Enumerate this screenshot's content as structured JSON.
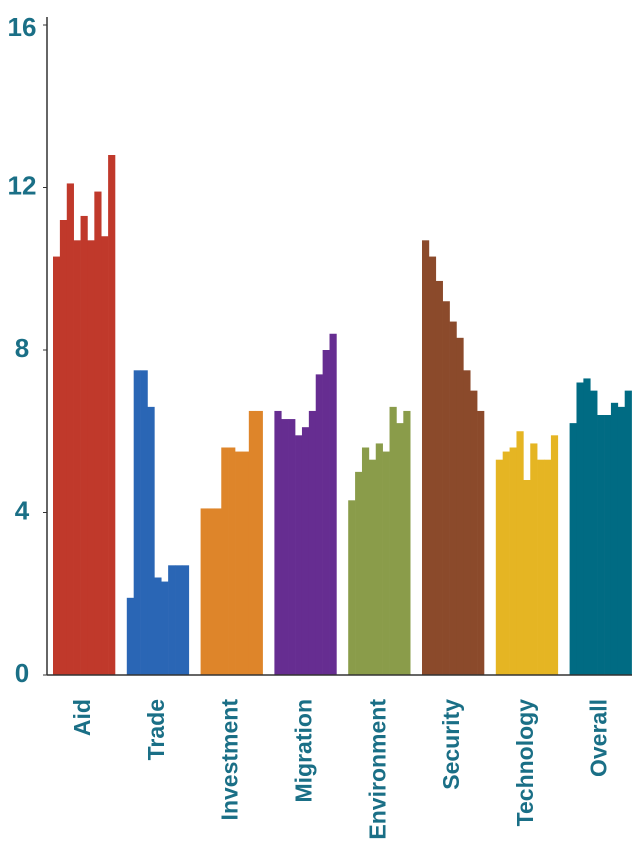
{
  "chart_data": {
    "type": "bar",
    "categories": [
      "Aid",
      "Trade",
      "Investment",
      "Migration",
      "Environment",
      "Security",
      "Technology",
      "Overall"
    ],
    "colors": [
      "#c0392b",
      "#2a66b5",
      "#de852a",
      "#662d91",
      "#8a9c4a",
      "#8b4a2b",
      "#e5b523",
      "#006b83"
    ],
    "values": [
      [
        10.3,
        11.2,
        12.1,
        10.7,
        11.3,
        10.7,
        11.9,
        10.8,
        12.8
      ],
      [
        1.9,
        7.5,
        7.5,
        6.6,
        2.4,
        2.3,
        2.7,
        2.7,
        2.7
      ],
      [
        4.1,
        4.1,
        4.1,
        5.6,
        5.6,
        5.5,
        5.5,
        6.5,
        6.5
      ],
      [
        6.5,
        6.3,
        6.3,
        5.9,
        6.1,
        6.5,
        7.4,
        8.0,
        8.4
      ],
      [
        4.3,
        5.0,
        5.6,
        5.3,
        5.7,
        5.5,
        6.6,
        6.2,
        6.5
      ],
      [
        10.7,
        10.3,
        9.7,
        9.2,
        8.7,
        8.3,
        7.5,
        7.0,
        6.5
      ],
      [
        5.3,
        5.5,
        5.6,
        6.0,
        4.8,
        5.7,
        5.3,
        5.3,
        5.9
      ],
      [
        6.2,
        7.2,
        7.3,
        7.0,
        6.4,
        6.4,
        6.7,
        6.6,
        7.0
      ]
    ],
    "ylim": [
      0,
      16
    ],
    "yticks": [
      0,
      4,
      8,
      12,
      16
    ],
    "grid": false
  }
}
